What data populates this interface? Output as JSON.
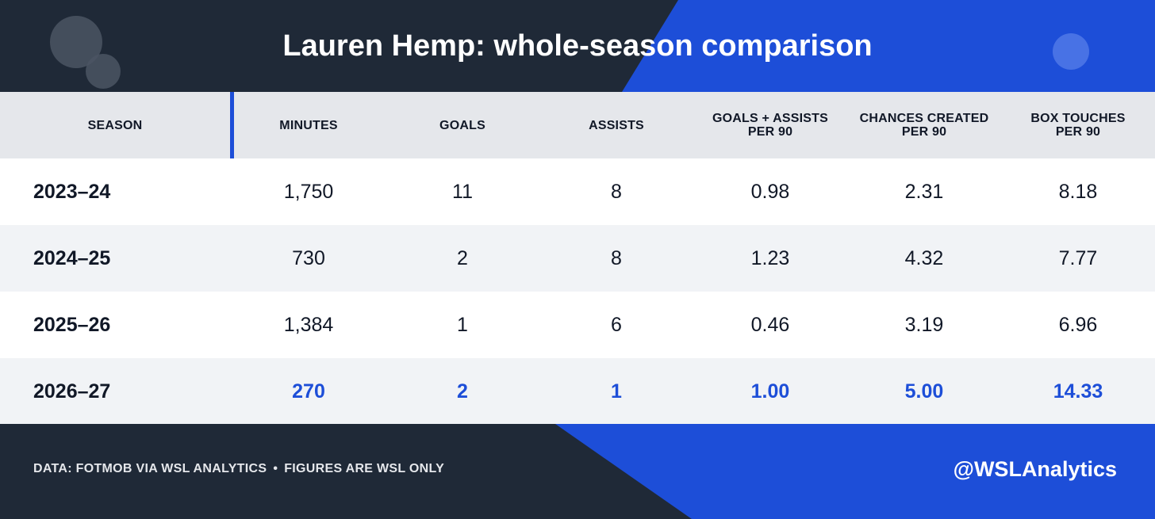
{
  "header": {
    "title": "Lauren Hemp: whole-season comparison"
  },
  "table": {
    "columns": [
      "SEASON",
      "MINUTES",
      "GOALS",
      "ASSISTS",
      "GOALS + ASSISTS\nPER 90",
      "CHANCES CREATED\nPER 90",
      "BOX TOUCHES\nPER 90"
    ],
    "rows": [
      [
        "2023–24",
        "1,750",
        "11",
        "8",
        "0.98",
        "2.31",
        "8.18"
      ],
      [
        "2024–25",
        "730",
        "2",
        "8",
        "1.23",
        "4.32",
        "7.77"
      ],
      [
        "2025–26",
        "1,384",
        "1",
        "6",
        "0.46",
        "3.19",
        "6.96"
      ],
      [
        "2026–27",
        "270",
        "2",
        "1",
        "1.00",
        "5.00",
        "14.33"
      ]
    ],
    "highlight_row": 3
  },
  "footer": {
    "source_left": "DATA: FOTMOB VIA WSL ANALYTICS",
    "separator": "•",
    "source_right": "FIGURES ARE WSL ONLY",
    "handle": "@WSLAnalytics"
  },
  "colors": {
    "dark": "#1f2937",
    "accent": "#1d4ed8",
    "header_row": "#e5e7eb",
    "alt_row": "#f1f3f6"
  }
}
